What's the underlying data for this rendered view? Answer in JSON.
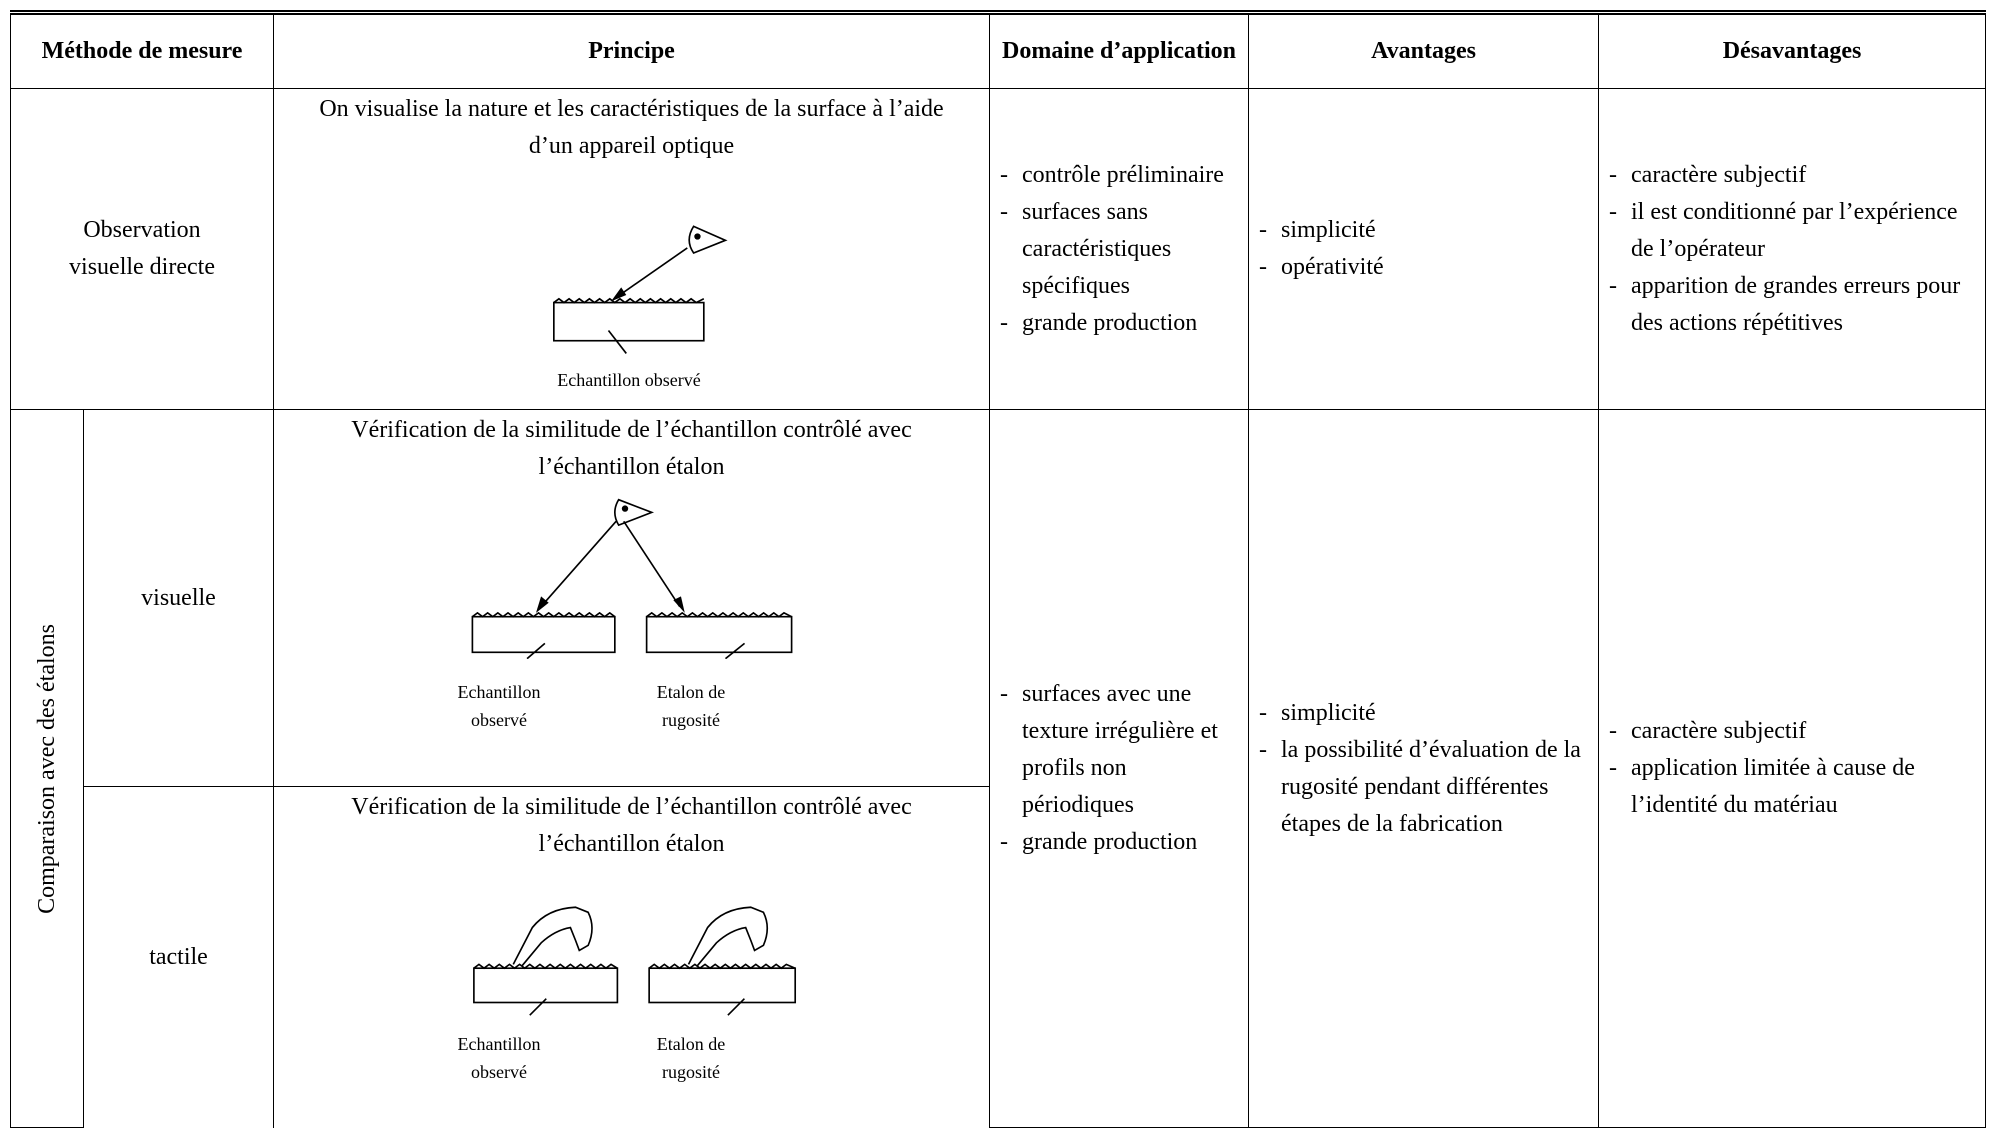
{
  "table": {
    "header": [
      "Méthode de mesure",
      "Principe",
      "Domaine d’application",
      "Avantages",
      "Désavantages"
    ],
    "row1": {
      "method": "Observation visuelle directe",
      "principle": "On visualise la nature et les caractéristiques de la surface  à l’aide d’un appareil optique",
      "figure_label": "Echantillon observé",
      "domain": [
        "contrôle préliminaire",
        "surfaces sans caractéristiques spécifiques",
        "grande production"
      ],
      "advantages": [
        "simplicité",
        "opérativité"
      ],
      "disadvantages": [
        "caractère subjectif",
        "il est conditionné par l’expérience de l’opérateur",
        "apparition de grandes erreurs pour des actions répétitives"
      ]
    },
    "row2": {
      "group": "Comparaison avec des étalons",
      "sub": [
        {
          "method": "visuelle",
          "principle": "Vérification de la similitude de l’échantillon contrôlé avec l’échantillon étalon",
          "figure_labels": [
            "Echantillon observé",
            "Etalon de rugosité"
          ]
        },
        {
          "method": "tactile",
          "principle": "Vérification de la similitude de l’échantillon contrôlé avec l’échantillon étalon",
          "figure_labels": [
            "Echantillon observé",
            "Etalon de rugosité"
          ]
        }
      ],
      "domain": [
        "surfaces avec une texture irrégulière et profils non périodiques",
        "grande production"
      ],
      "advantages": [
        "simplicité",
        "la possibilité d’évaluation de la rugosité pendant différentes étapes de la fabrication"
      ],
      "disadvantages": [
        "caractère subjectif",
        "application limitée à cause de l’identité du matériau"
      ]
    }
  }
}
